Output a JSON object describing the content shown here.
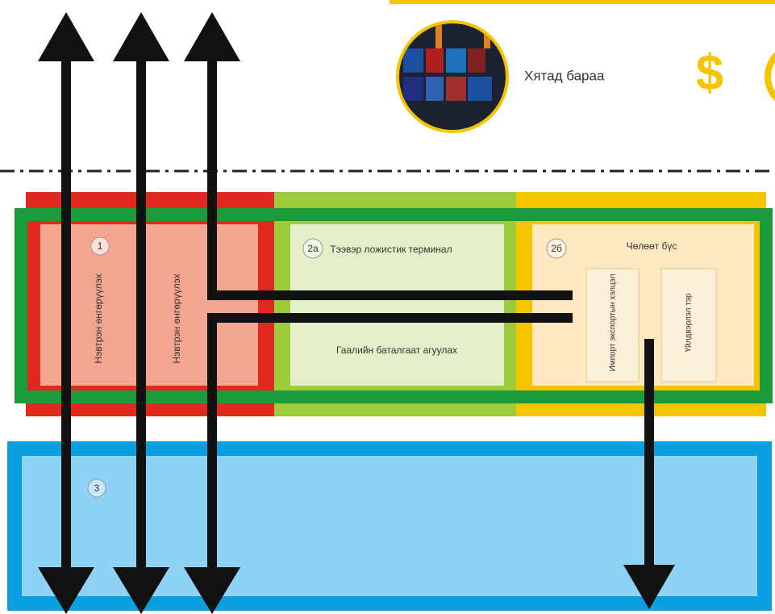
{
  "header": {
    "label": "Хятад бараа",
    "symbol": "$"
  },
  "zones": [
    {
      "number": "1",
      "labels": [
        "Нэвтрэн өнгөрүүлэх",
        "Нэвтрэн өнгөрүүлэх"
      ]
    },
    {
      "number": "2а",
      "labels": [
        "Тээвэр ложистик терминал",
        "Гаалийн баталгаат агуулах"
      ]
    },
    {
      "number": "2б",
      "labels": [
        "Чөлөөт бүс",
        "Импорт экспортын хэлцэл",
        "Үйлдвэрлэл тэр"
      ]
    },
    {
      "number": "3",
      "labels": []
    }
  ]
}
